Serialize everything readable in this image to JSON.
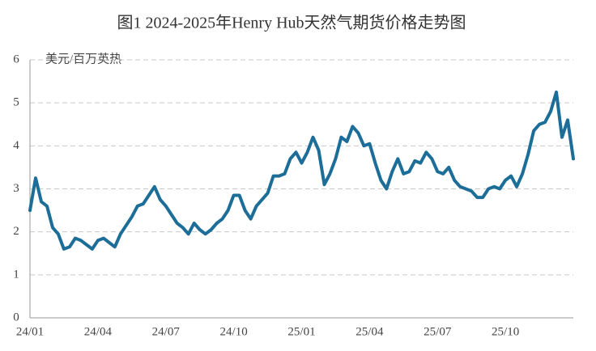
{
  "chart_data": {
    "type": "line",
    "title": "图1 2024-2025年Henry Hub天然气期货价格走势图",
    "y_label": "美元/百万英热",
    "color": "#1c6e99",
    "grid": true,
    "ylim": [
      0,
      6
    ],
    "yticks": [
      0,
      1,
      2,
      3,
      4,
      5,
      6
    ],
    "categories": [
      "24/01",
      null,
      null,
      null,
      null,
      null,
      null,
      null,
      null,
      null,
      null,
      null,
      "24/04",
      null,
      null,
      null,
      null,
      null,
      null,
      null,
      null,
      null,
      null,
      null,
      "24/07",
      null,
      null,
      null,
      null,
      null,
      null,
      null,
      null,
      null,
      null,
      null,
      "24/10",
      null,
      null,
      null,
      null,
      null,
      null,
      null,
      null,
      null,
      null,
      null,
      "25/01",
      null,
      null,
      null,
      null,
      null,
      null,
      null,
      null,
      null,
      null,
      null,
      "25/04",
      null,
      null,
      null,
      null,
      null,
      null,
      null,
      null,
      null,
      null,
      null,
      "25/07",
      null,
      null,
      null,
      null,
      null,
      null,
      null,
      null,
      null,
      null,
      null,
      "25/10",
      null,
      null,
      null,
      null,
      null,
      null,
      null,
      null,
      null,
      null,
      null,
      null
    ],
    "values": [
      2.5,
      3.25,
      2.7,
      2.6,
      2.1,
      1.95,
      1.6,
      1.65,
      1.85,
      1.8,
      1.7,
      1.6,
      1.8,
      1.85,
      1.75,
      1.65,
      1.95,
      2.15,
      2.35,
      2.6,
      2.65,
      2.85,
      3.05,
      2.75,
      2.6,
      2.4,
      2.2,
      2.1,
      1.95,
      2.2,
      2.05,
      1.95,
      2.05,
      2.2,
      2.3,
      2.5,
      2.85,
      2.85,
      2.5,
      2.3,
      2.6,
      2.75,
      2.9,
      3.3,
      3.3,
      3.35,
      3.7,
      3.85,
      3.6,
      3.85,
      4.2,
      3.9,
      3.1,
      3.35,
      3.7,
      4.2,
      4.1,
      4.45,
      4.3,
      4.0,
      4.05,
      3.6,
      3.2,
      3.0,
      3.4,
      3.7,
      3.35,
      3.4,
      3.65,
      3.6,
      3.85,
      3.7,
      3.4,
      3.35,
      3.5,
      3.2,
      3.05,
      3.0,
      2.95,
      2.8,
      2.8,
      3.0,
      3.05,
      3.0,
      3.2,
      3.3,
      3.05,
      3.35,
      3.8,
      4.35,
      4.5,
      4.55,
      4.8,
      5.25,
      4.2,
      4.6,
      3.7
    ]
  }
}
